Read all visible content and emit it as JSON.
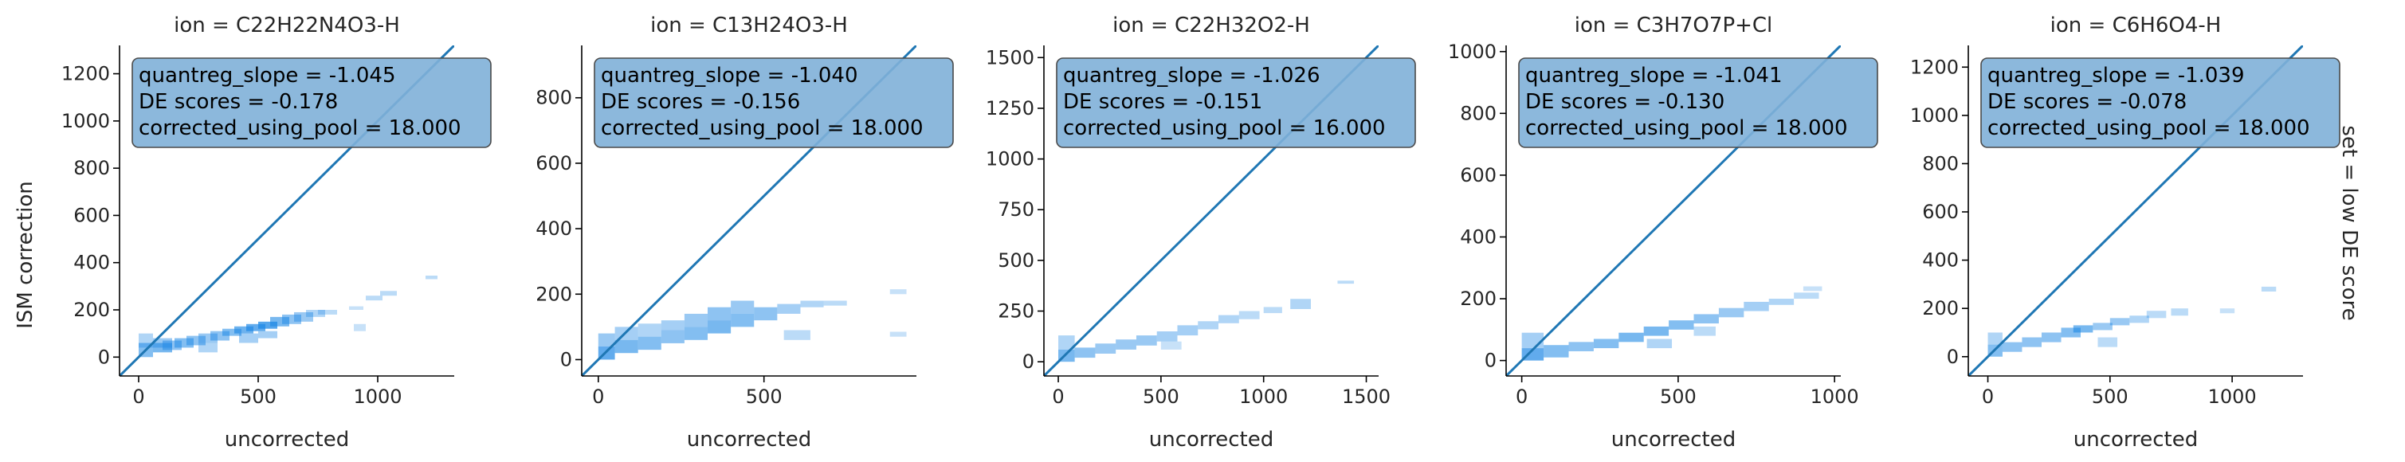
{
  "figure": {
    "ylabel": "ISM correction",
    "xlabel": "uncorrected",
    "row_label": "set = low DE score"
  },
  "colors": {
    "diag_line": "#1f77b4",
    "box_fill": "#7fb0d8",
    "box_edge": "#4a4a4a",
    "hist": "#1e88e5"
  },
  "chart_data": [
    {
      "type": "heatmap",
      "title": "ion = C22H22N4O3-H",
      "xlim": [
        -80,
        1320
      ],
      "ylim": [
        -80,
        1320
      ],
      "xticks": [
        0,
        500,
        1000
      ],
      "yticks": [
        0,
        200,
        400,
        600,
        800,
        1000,
        1200
      ],
      "stats": [
        "quantreg_slope = -1.045",
        "DE scores = -0.178",
        "corrected_using_pool = 18.000"
      ],
      "line": {
        "x": [
          -80,
          1320
        ],
        "y": [
          -80,
          1320
        ]
      },
      "bins": [
        [
          0,
          60,
          0,
          60,
          0.55
        ],
        [
          0,
          60,
          40,
          100,
          0.35
        ],
        [
          60,
          140,
          20,
          60,
          0.6
        ],
        [
          60,
          140,
          40,
          80,
          0.45
        ],
        [
          100,
          180,
          30,
          70,
          0.5
        ],
        [
          150,
          230,
          40,
          80,
          0.55
        ],
        [
          200,
          280,
          50,
          90,
          0.5
        ],
        [
          250,
          330,
          60,
          100,
          0.45
        ],
        [
          250,
          330,
          20,
          60,
          0.35
        ],
        [
          300,
          380,
          70,
          110,
          0.5
        ],
        [
          350,
          430,
          90,
          120,
          0.55
        ],
        [
          400,
          480,
          100,
          130,
          0.65
        ],
        [
          420,
          500,
          60,
          100,
          0.4
        ],
        [
          450,
          530,
          110,
          140,
          0.7
        ],
        [
          500,
          580,
          120,
          150,
          0.75
        ],
        [
          500,
          580,
          80,
          110,
          0.4
        ],
        [
          550,
          630,
          130,
          170,
          0.6
        ],
        [
          600,
          680,
          140,
          180,
          0.5
        ],
        [
          650,
          730,
          150,
          190,
          0.45
        ],
        [
          700,
          780,
          170,
          200,
          0.35
        ],
        [
          750,
          830,
          180,
          200,
          0.3
        ],
        [
          880,
          940,
          200,
          215,
          0.25
        ],
        [
          950,
          1020,
          240,
          260,
          0.3
        ],
        [
          1010,
          1080,
          260,
          280,
          0.3
        ],
        [
          900,
          950,
          110,
          140,
          0.25
        ],
        [
          1200,
          1250,
          330,
          345,
          0.3
        ]
      ]
    },
    {
      "type": "heatmap",
      "title": "ion = C13H24O3-H",
      "xlim": [
        -50,
        960
      ],
      "ylim": [
        -50,
        960
      ],
      "xticks": [
        0,
        500
      ],
      "yticks": [
        0,
        200,
        400,
        600,
        800
      ],
      "stats": [
        "quantreg_slope = -1.040",
        "DE scores = -0.156",
        "corrected_using_pool = 18.000"
      ],
      "line": {
        "x": [
          -50,
          960
        ],
        "y": [
          -50,
          960
        ]
      },
      "bins": [
        [
          0,
          50,
          0,
          40,
          0.7
        ],
        [
          0,
          50,
          40,
          80,
          0.45
        ],
        [
          50,
          120,
          20,
          60,
          0.6
        ],
        [
          50,
          120,
          60,
          100,
          0.4
        ],
        [
          120,
          190,
          30,
          70,
          0.55
        ],
        [
          120,
          190,
          70,
          110,
          0.35
        ],
        [
          190,
          260,
          50,
          90,
          0.5
        ],
        [
          190,
          260,
          90,
          120,
          0.4
        ],
        [
          260,
          330,
          60,
          100,
          0.55
        ],
        [
          260,
          330,
          100,
          140,
          0.45
        ],
        [
          330,
          400,
          80,
          120,
          0.6
        ],
        [
          330,
          400,
          120,
          160,
          0.5
        ],
        [
          400,
          470,
          100,
          140,
          0.55
        ],
        [
          400,
          470,
          140,
          180,
          0.45
        ],
        [
          470,
          540,
          120,
          160,
          0.5
        ],
        [
          540,
          610,
          140,
          170,
          0.4
        ],
        [
          610,
          680,
          160,
          180,
          0.35
        ],
        [
          680,
          750,
          165,
          180,
          0.3
        ],
        [
          560,
          640,
          60,
          90,
          0.3
        ],
        [
          880,
          930,
          200,
          215,
          0.25
        ],
        [
          880,
          930,
          70,
          85,
          0.25
        ]
      ]
    },
    {
      "type": "heatmap",
      "title": "ion = C22H32O2-H",
      "xlim": [
        -70,
        1560
      ],
      "ylim": [
        -70,
        1560
      ],
      "xticks": [
        0,
        500,
        1000,
        1500
      ],
      "yticks": [
        0,
        250,
        500,
        750,
        1000,
        1250,
        1500
      ],
      "stats": [
        "quantreg_slope = -1.026",
        "DE scores = -0.151",
        "corrected_using_pool = 16.000"
      ],
      "line": {
        "x": [
          -70,
          1560
        ],
        "y": [
          -70,
          1560
        ]
      },
      "bins": [
        [
          0,
          80,
          0,
          60,
          0.6
        ],
        [
          0,
          80,
          60,
          130,
          0.35
        ],
        [
          80,
          180,
          20,
          70,
          0.5
        ],
        [
          180,
          280,
          40,
          90,
          0.45
        ],
        [
          280,
          380,
          60,
          110,
          0.45
        ],
        [
          380,
          480,
          80,
          130,
          0.45
        ],
        [
          480,
          580,
          100,
          150,
          0.4
        ],
        [
          580,
          680,
          130,
          180,
          0.4
        ],
        [
          680,
          780,
          160,
          200,
          0.35
        ],
        [
          780,
          880,
          190,
          230,
          0.35
        ],
        [
          880,
          980,
          210,
          250,
          0.3
        ],
        [
          1000,
          1090,
          240,
          270,
          0.3
        ],
        [
          1130,
          1230,
          260,
          310,
          0.35
        ],
        [
          1360,
          1440,
          385,
          400,
          0.3
        ],
        [
          500,
          600,
          60,
          100,
          0.25
        ]
      ]
    },
    {
      "type": "heatmap",
      "title": "ion = C3H7O7P+Cl",
      "xlim": [
        -50,
        1020
      ],
      "ylim": [
        -50,
        1020
      ],
      "xticks": [
        0,
        500,
        1000
      ],
      "yticks": [
        0,
        200,
        400,
        600,
        800,
        1000
      ],
      "stats": [
        "quantreg_slope = -1.041",
        "DE scores = -0.130",
        "corrected_using_pool = 18.000"
      ],
      "line": {
        "x": [
          -50,
          1020
        ],
        "y": [
          -50,
          1020
        ]
      },
      "bins": [
        [
          0,
          70,
          0,
          40,
          0.7
        ],
        [
          0,
          70,
          40,
          90,
          0.4
        ],
        [
          70,
          150,
          10,
          50,
          0.55
        ],
        [
          150,
          230,
          30,
          60,
          0.5
        ],
        [
          230,
          310,
          40,
          70,
          0.55
        ],
        [
          310,
          390,
          60,
          90,
          0.6
        ],
        [
          390,
          470,
          80,
          110,
          0.6
        ],
        [
          470,
          550,
          100,
          130,
          0.55
        ],
        [
          550,
          630,
          120,
          150,
          0.5
        ],
        [
          630,
          710,
          140,
          170,
          0.45
        ],
        [
          710,
          790,
          160,
          190,
          0.4
        ],
        [
          790,
          870,
          180,
          200,
          0.35
        ],
        [
          870,
          950,
          200,
          220,
          0.3
        ],
        [
          900,
          960,
          225,
          240,
          0.25
        ],
        [
          400,
          480,
          40,
          70,
          0.35
        ],
        [
          550,
          620,
          80,
          110,
          0.3
        ]
      ]
    },
    {
      "type": "heatmap",
      "title": "ion = C6H6O4-H",
      "xlim": [
        -80,
        1290
      ],
      "ylim": [
        -80,
        1290
      ],
      "xticks": [
        0,
        500,
        1000
      ],
      "yticks": [
        0,
        200,
        400,
        600,
        800,
        1000,
        1200
      ],
      "stats": [
        "quantreg_slope = -1.039",
        "DE scores = -0.078",
        "corrected_using_pool = 18.000"
      ],
      "line": {
        "x": [
          -80,
          1290
        ],
        "y": [
          -80,
          1290
        ]
      },
      "bins": [
        [
          0,
          60,
          0,
          50,
          0.55
        ],
        [
          0,
          60,
          50,
          100,
          0.35
        ],
        [
          60,
          140,
          20,
          60,
          0.5
        ],
        [
          140,
          220,
          40,
          80,
          0.5
        ],
        [
          220,
          300,
          60,
          100,
          0.5
        ],
        [
          300,
          380,
          80,
          120,
          0.55
        ],
        [
          350,
          430,
          100,
          130,
          0.6
        ],
        [
          430,
          510,
          110,
          140,
          0.45
        ],
        [
          500,
          580,
          130,
          160,
          0.45
        ],
        [
          580,
          660,
          140,
          170,
          0.35
        ],
        [
          650,
          730,
          160,
          190,
          0.3
        ],
        [
          750,
          820,
          170,
          200,
          0.3
        ],
        [
          950,
          1010,
          180,
          200,
          0.25
        ],
        [
          1120,
          1180,
          270,
          290,
          0.3
        ],
        [
          450,
          530,
          40,
          80,
          0.3
        ]
      ]
    }
  ]
}
